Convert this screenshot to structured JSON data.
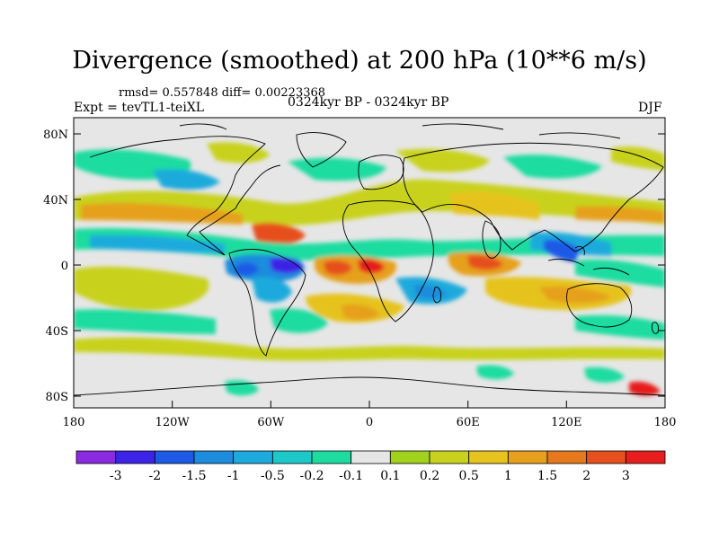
{
  "title": "Divergence (smoothed) at 200 hPa (10**6 m/s)",
  "stats": "rmsd= 0.557848 diff= 0.00223368",
  "experiment": "Expt = tevTL1-teiXL",
  "period": "0324kyr BP - 0324kyr BP",
  "season": "DJF",
  "lat_labels": [
    "80N",
    "40N",
    "0",
    "40S",
    "80S"
  ],
  "lon_labels": [
    "180",
    "120W",
    "60W",
    "0",
    "60E",
    "120E",
    "180"
  ],
  "colorbar": {
    "labels": [
      "-3",
      "-2",
      "-1.5",
      "-1",
      "-0.5",
      "-0.2",
      "-0.1",
      "0.1",
      "0.2",
      "0.5",
      "1",
      "1.5",
      "2",
      "3"
    ],
    "colors": [
      "#8a2be2",
      "#3c23e6",
      "#1e5ae6",
      "#1e8cdc",
      "#1eaadc",
      "#1ec8c8",
      "#1edca0",
      "#e6e6e6",
      "#a0d21e",
      "#c8d21e",
      "#e6c31e",
      "#e6a01e",
      "#e6781e",
      "#e6501e",
      "#e61e1e"
    ]
  },
  "colors": {
    "neutral": "#e6e6e6",
    "ocean_label": "#000000"
  }
}
